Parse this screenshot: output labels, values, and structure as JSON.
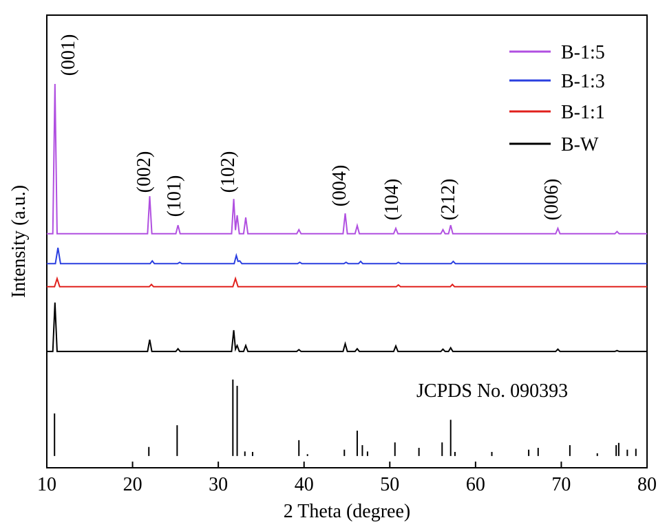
{
  "chart_data": {
    "type": "line",
    "xlabel": "2 Theta (degree)",
    "ylabel": "Intensity (a.u.)",
    "xlim": [
      10,
      80
    ],
    "xticks": [
      10,
      20,
      30,
      40,
      50,
      60,
      70,
      80
    ],
    "ylim": [
      0,
      100
    ],
    "legend": "upper right",
    "series": [
      {
        "name": "B-1:5",
        "color": "#b04fe0",
        "x": [
          10,
          10.7,
          10.95,
          11.2,
          21.75,
          22,
          22.25,
          25.05,
          25.3,
          25.55,
          31.55,
          31.8,
          32.0,
          32.2,
          32.45,
          32.95,
          33.2,
          33.45,
          39.15,
          39.4,
          39.65,
          44.55,
          44.8,
          45.05,
          45.95,
          46.2,
          46.45,
          50.45,
          50.7,
          50.95,
          55.95,
          56.2,
          56.45,
          56.85,
          57.1,
          57.35,
          69.35,
          69.6,
          69.85,
          76.25,
          76.5,
          76.75,
          80
        ],
        "values": [
          51.7,
          51.7,
          84.8,
          51.7,
          51.7,
          60,
          51.7,
          51.7,
          53.6,
          51.7,
          51.7,
          59.4,
          52.5,
          55.8,
          51.7,
          51.7,
          55.3,
          51.7,
          51.7,
          52.6,
          51.7,
          51.7,
          56.2,
          51.7,
          51.7,
          53.5,
          51.7,
          51.7,
          52.9,
          51.7,
          51.7,
          52.6,
          51.7,
          51.7,
          53.6,
          51.7,
          51.7,
          52.9,
          51.7,
          51.7,
          52.2,
          51.7,
          51.7
        ]
      },
      {
        "name": "B-1:3",
        "color": "#2a3fe0",
        "x": [
          10,
          11.0,
          11.3,
          11.6,
          22.05,
          22.3,
          22.55,
          25.25,
          25.5,
          25.75,
          31.85,
          32.1,
          32.3,
          32.5,
          32.75,
          39.25,
          39.5,
          39.75,
          44.65,
          44.9,
          45.15,
          46.35,
          46.6,
          46.85,
          50.75,
          51,
          51.25,
          57.15,
          57.4,
          57.65,
          80
        ],
        "values": [
          45.1,
          45.1,
          48.6,
          45.1,
          45.1,
          45.7,
          45.1,
          45.1,
          45.4,
          45.1,
          45.1,
          46.9,
          45.6,
          45.7,
          45.1,
          45.1,
          45.4,
          45.1,
          45.1,
          45.4,
          45.1,
          45.1,
          45.6,
          45.1,
          45.1,
          45.4,
          45.1,
          45.1,
          45.6,
          45.1,
          45.1
        ]
      },
      {
        "name": "B-1:1",
        "color": "#e0201c",
        "x": [
          10,
          10.9,
          11.2,
          11.5,
          21.95,
          22.2,
          22.45,
          31.7,
          32,
          32.3,
          50.75,
          51,
          51.25,
          57.05,
          57.3,
          57.55,
          80
        ],
        "values": [
          40,
          40,
          41.8,
          40,
          40,
          40.5,
          40,
          40,
          41.8,
          40,
          40,
          40.4,
          40,
          40,
          40.5,
          40,
          40
        ]
      },
      {
        "name": "B-W",
        "color": "#000000",
        "x": [
          10,
          10.7,
          10.95,
          11.2,
          21.75,
          22,
          22.25,
          25.05,
          25.3,
          25.55,
          31.55,
          31.8,
          32.0,
          32.2,
          32.45,
          32.95,
          33.2,
          33.45,
          39.15,
          39.4,
          39.65,
          44.55,
          44.8,
          45.05,
          45.95,
          46.2,
          46.45,
          50.45,
          50.7,
          50.95,
          55.95,
          56.2,
          56.45,
          56.85,
          57.1,
          57.35,
          69.35,
          69.6,
          69.85,
          76.25,
          76.5,
          76.75,
          80
        ],
        "values": [
          25.7,
          25.7,
          36.5,
          25.7,
          25.7,
          28.3,
          25.7,
          25.7,
          26.3,
          25.7,
          25.7,
          30.4,
          26.2,
          27,
          25.7,
          25.7,
          27,
          25.7,
          25.7,
          26.1,
          25.7,
          25.7,
          27.4,
          25.7,
          25.7,
          26.3,
          25.7,
          25.7,
          26.9,
          25.7,
          25.7,
          26.2,
          25.7,
          25.7,
          26.5,
          25.7,
          25.7,
          26.2,
          25.7,
          25.7,
          25.9,
          25.7,
          25.7
        ]
      }
    ],
    "reference": {
      "name": "JCPDS No. 090393",
      "color": "#000000",
      "baseline": 2.6,
      "x": [
        10.9,
        21.9,
        25.2,
        31.7,
        32.2,
        33.1,
        34.0,
        39.4,
        40.4,
        44.7,
        46.2,
        46.8,
        47.4,
        50.6,
        53.4,
        56.1,
        57.1,
        57.6,
        61.9,
        66.2,
        67.3,
        71.0,
        74.2,
        76.4,
        76.7,
        77.7,
        78.7
      ],
      "values": [
        12.0,
        4.6,
        9.4,
        19.5,
        18.1,
        3.6,
        3.5,
        6.1,
        3.0,
        4.0,
        8.2,
        5.0,
        3.6,
        5.6,
        4.4,
        5.6,
        10.6,
        3.5,
        3.5,
        4.0,
        4.4,
        5.0,
        3.2,
        5.0,
        5.5,
        4.0,
        4.2
      ]
    },
    "annotations": [
      "(001)",
      "(002)",
      "(101)",
      "(102)",
      "(004)",
      "(104)",
      "(212)",
      "(006)"
    ]
  }
}
